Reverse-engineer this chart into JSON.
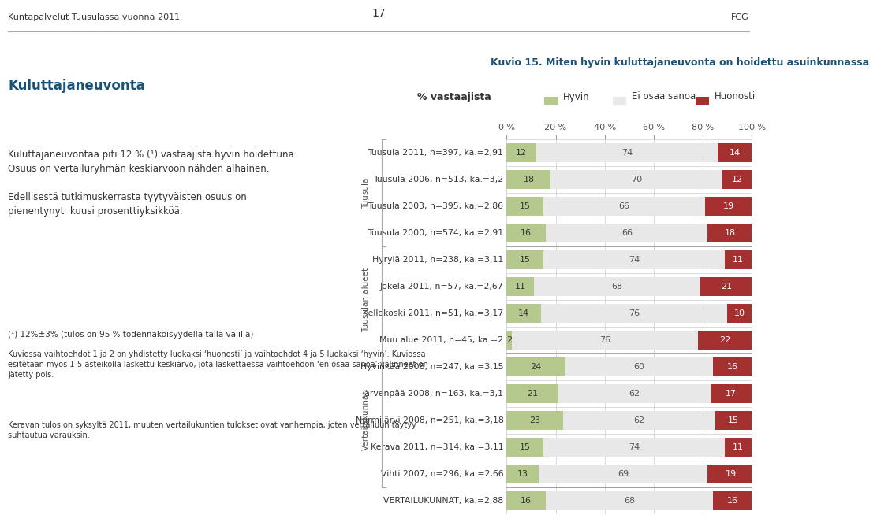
{
  "title": "Kuvio 15. Miten hyvin kuluttajaneuvonta on hoidettu asuinkunnassa",
  "header_left": "Kuntapalvelut Tuusulassa vuonna 2011",
  "header_right": "FCG",
  "page_num": "17",
  "xlabel": "% vastaajista",
  "legend_labels": [
    "Hyvin",
    "Ei osaa sanoa",
    "Huonosti"
  ],
  "colors": {
    "hyvin": "#b5c98e",
    "ei_osaa": "#e8e8e8",
    "huonosti": "#a53030"
  },
  "rows": [
    {
      "label": "Tuusula 2011, n=397, ka.=2,91",
      "hyvin": 12,
      "ei_osaa": 74,
      "huonosti": 14,
      "group": "tuusula"
    },
    {
      "label": "Tuusula 2006, n=513, ka.=3,2",
      "hyvin": 18,
      "ei_osaa": 70,
      "huonosti": 12,
      "group": "tuusula"
    },
    {
      "label": "Tuusula 2003, n=395, ka.=2,86",
      "hyvin": 15,
      "ei_osaa": 66,
      "huonosti": 19,
      "group": "tuusula"
    },
    {
      "label": "Tuusula 2000, n=574, ka.=2,91",
      "hyvin": 16,
      "ei_osaa": 66,
      "huonosti": 18,
      "group": "tuusula"
    },
    {
      "label": "Hyrylä 2011, n=238, ka.=3,11",
      "hyvin": 15,
      "ei_osaa": 74,
      "huonosti": 11,
      "group": "alueet"
    },
    {
      "label": "Jokela 2011, n=57, ka.=2,67",
      "hyvin": 11,
      "ei_osaa": 68,
      "huonosti": 21,
      "group": "alueet"
    },
    {
      "label": "Kellokoski 2011, n=51, ka.=3,17",
      "hyvin": 14,
      "ei_osaa": 76,
      "huonosti": 10,
      "group": "alueet"
    },
    {
      "label": "Muu alue 2011, n=45, ka.=2",
      "hyvin": 2,
      "ei_osaa": 76,
      "huonosti": 22,
      "group": "alueet"
    },
    {
      "label": "Hyvinkää 2008, n=247, ka.=3,15",
      "hyvin": 24,
      "ei_osaa": 60,
      "huonosti": 16,
      "group": "vertailu"
    },
    {
      "label": "Järvenpää 2008, n=163, ka.=3,1",
      "hyvin": 21,
      "ei_osaa": 62,
      "huonosti": 17,
      "group": "vertailu"
    },
    {
      "label": "Nurmijärvi 2008, n=251, ka.=3,18",
      "hyvin": 23,
      "ei_osaa": 62,
      "huonosti": 15,
      "group": "vertailu"
    },
    {
      "label": "Kerava 2011, n=314, ka.=3,11",
      "hyvin": 15,
      "ei_osaa": 74,
      "huonosti": 11,
      "group": "vertailu"
    },
    {
      "label": "Vihti 2007, n=296, ka.=2,66",
      "hyvin": 13,
      "ei_osaa": 69,
      "huonosti": 19,
      "group": "vertailu"
    },
    {
      "label": "VERTAILUKUNNAT, ka.=2,88",
      "hyvin": 16,
      "ei_osaa": 68,
      "huonosti": 16,
      "group": "vertailukunnat"
    }
  ],
  "group_info": {
    "tuusula": {
      "row_indices": [
        0,
        1,
        2,
        3
      ],
      "label": "Tuusula"
    },
    "alueet": {
      "row_indices": [
        4,
        5,
        6,
        7
      ],
      "label": "Tuusulan alueet"
    },
    "vertailu": {
      "row_indices": [
        8,
        9,
        10,
        11,
        12
      ],
      "label": "Vertailukunnat"
    },
    "vertailukunnat": {
      "row_indices": [
        13
      ],
      "label": ""
    }
  },
  "group_separators_after": [
    3,
    7,
    12
  ],
  "background_color": "#ffffff",
  "left_texts": {
    "heading": "Kuluttajaneuvonta",
    "body": "Kuluttajaneuvontaa piti 12 % (¹) vastaajista hyvin hoidettuna.\nOsuus on vertailuryhmän keskiarvoon nähden alhainen.\n\nEdellisestä tutkimuskerrasta tyytyväisten osuus on\npienentynyt  kuusi prosenttiyksikköä.",
    "footnote1": "(¹) 12%±3% (tulos on 95 % todennäköisyydellä tällä välillä)",
    "footnote2": "Kuviossa vaihtoehdot 1 ja 2 on yhdistetty luokaksi ‘huonosti’ ja vaihtoehdot 4 ja 5 luokaksi ‘hyvin’. Kuviossa\nesitetään myös 1-5 asteikolla laskettu keskiarvo, jota laskettaessa vaihtoehdon ‘en osaa sanoa’ valinneet on\njätetty pois.",
    "footnote3": "Keravan tulos on syksyltä 2011, muuten vertailukuntien tulokset ovat vanhempia, joten vertailuun täytyy\nsuhtautua varauksin."
  }
}
